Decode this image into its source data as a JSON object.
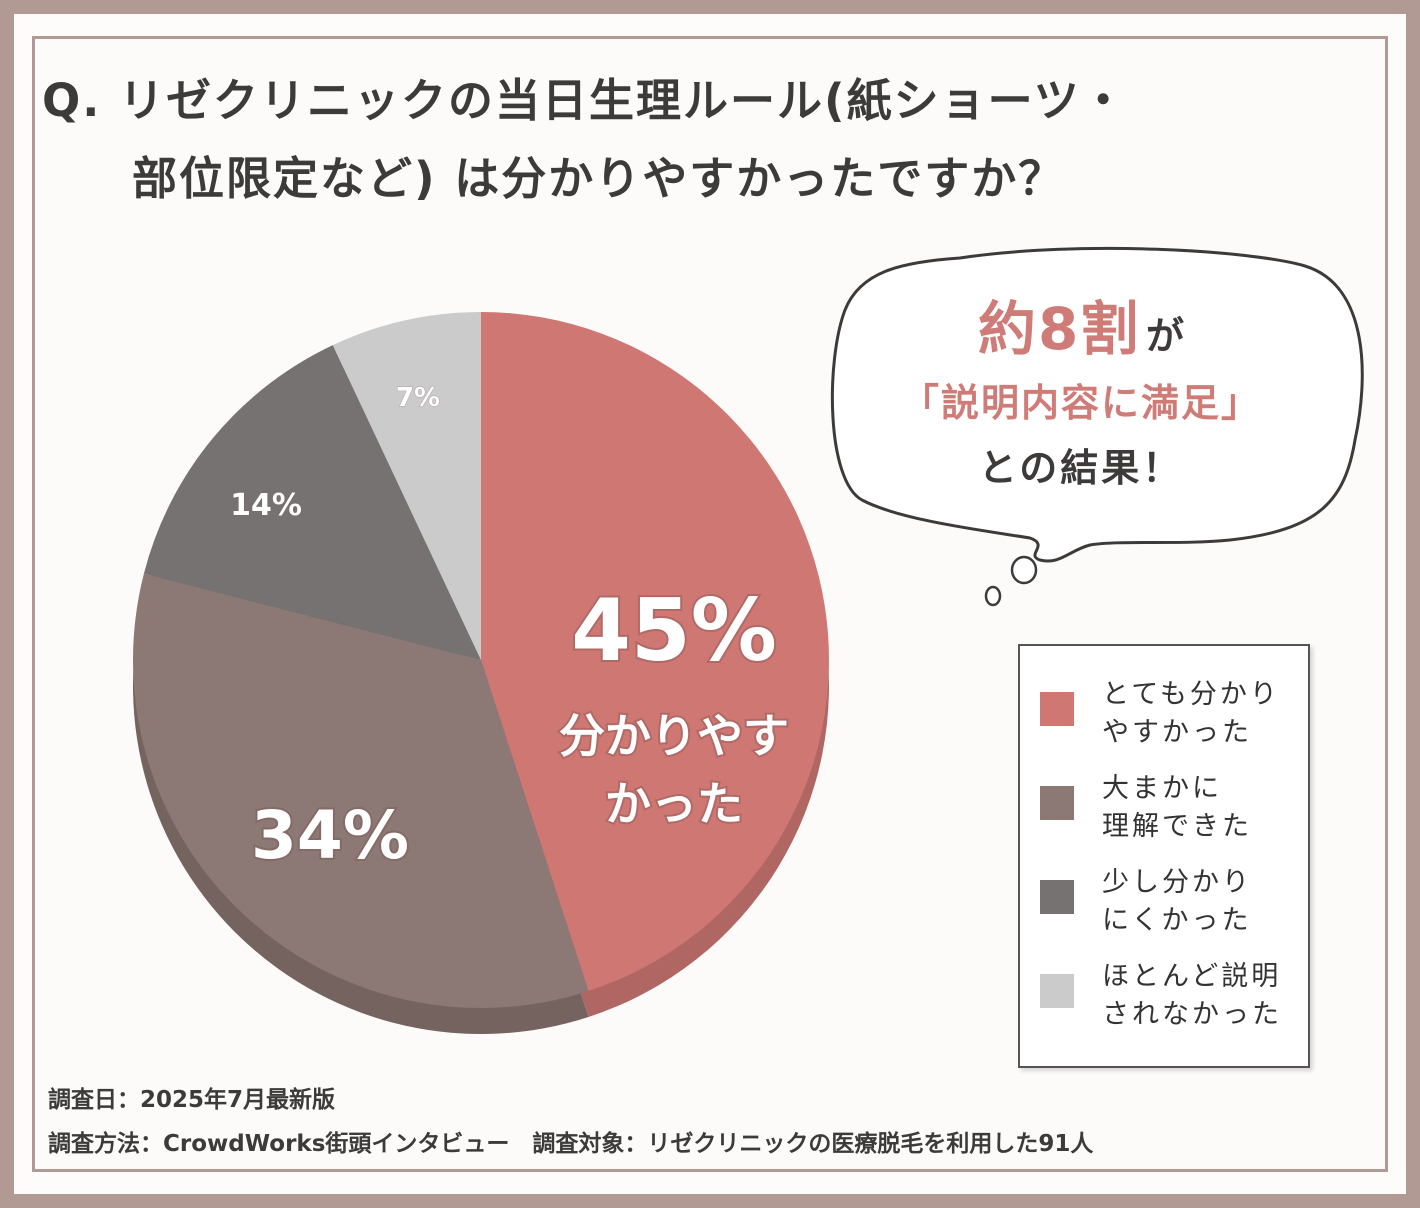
{
  "title": {
    "line1": "Q. リゼクリニックの当日生理ルール(紙ショーツ・",
    "line2": "部位限定など) は分かりやすかったですか？"
  },
  "callout": {
    "highlight": "約8割",
    "particle": "が",
    "line2": "「説明内容に満足」",
    "line3": "との結果！"
  },
  "chart_data": {
    "type": "pie",
    "categories": [
      "とても分かりやすかった",
      "大まかに理解できた",
      "少し分かりにくかった",
      "ほとんど説明されなかった"
    ],
    "values": [
      45,
      34,
      14,
      7
    ],
    "unit": "%",
    "colors": [
      "#cf7773",
      "#8c7874",
      "#767271",
      "#cccbcc"
    ],
    "data_labels": [
      "45%",
      "34%",
      "14%",
      "7%"
    ],
    "slice_caption": {
      "line1": "分かりやす",
      "line2": "かった"
    },
    "legend": [
      {
        "line1": "とても分かり",
        "line2": "やすかった"
      },
      {
        "line1": "大まかに",
        "line2": "理解できた"
      },
      {
        "line1": "少し分かり",
        "line2": "にくかった"
      },
      {
        "line1": "ほとんど説明",
        "line2": "されなかった"
      }
    ],
    "legend_position": "bottom-right"
  },
  "footer": {
    "date": "調査日：2025年7月最新版",
    "method": "調査方法：CrowdWorks街頭インタビュー　調査対象：リゼクリニックの医療脱毛を利用した91人"
  }
}
